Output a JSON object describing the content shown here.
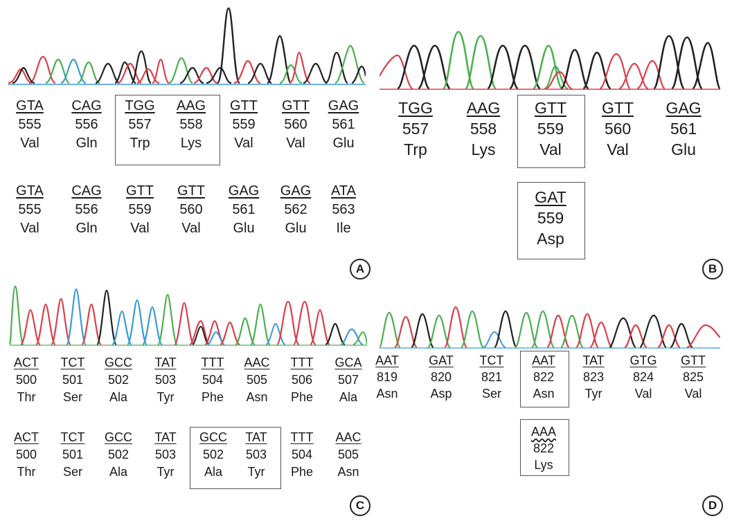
{
  "panels": [
    {
      "id": "A",
      "label": "A",
      "rows": [
        [
          {
            "codon": "GTA",
            "num": "555",
            "aa": "Val"
          },
          {
            "codon": "CAG",
            "num": "556",
            "aa": "Gln"
          },
          {
            "codon": "TGG",
            "num": "557",
            "aa": "Trp"
          },
          {
            "codon": "AAG",
            "num": "558",
            "aa": "Lys"
          },
          {
            "codon": "GTT",
            "num": "559",
            "aa": "Val"
          },
          {
            "codon": "GTT",
            "num": "560",
            "aa": "Val"
          },
          {
            "codon": "GAG",
            "num": "561",
            "aa": "Glu"
          }
        ],
        [
          {
            "codon": "GTA",
            "num": "555",
            "aa": "Val"
          },
          {
            "codon": "CAG",
            "num": "556",
            "aa": "Gln"
          },
          {
            "codon": "GTT",
            "num": "559",
            "aa": "Val"
          },
          {
            "codon": "GTT",
            "num": "560",
            "aa": "Val"
          },
          {
            "codon": "GAG",
            "num": "561",
            "aa": "Glu"
          },
          {
            "codon": "GAG",
            "num": "562",
            "aa": "Glu"
          },
          {
            "codon": "ATA",
            "num": "563",
            "aa": "Ile"
          }
        ]
      ]
    },
    {
      "id": "B",
      "label": "B",
      "rows": [
        [
          {
            "codon": "TGG",
            "num": "557",
            "aa": "Trp"
          },
          {
            "codon": "AAG",
            "num": "558",
            "aa": "Lys"
          },
          {
            "codon": "GTT",
            "num": "559",
            "aa": "Val"
          },
          {
            "codon": "GTT",
            "num": "560",
            "aa": "Val"
          },
          {
            "codon": "GAG",
            "num": "561",
            "aa": "Glu"
          }
        ],
        [
          {
            "codon": "GAT",
            "num": "559",
            "aa": "Asp"
          }
        ]
      ]
    },
    {
      "id": "C",
      "label": "C",
      "rows": [
        [
          {
            "codon": "ACT",
            "num": "500",
            "aa": "Thr"
          },
          {
            "codon": "TCT",
            "num": "501",
            "aa": "Ser"
          },
          {
            "codon": "GCC",
            "num": "502",
            "aa": "Ala"
          },
          {
            "codon": "TAT",
            "num": "503",
            "aa": "Tyr"
          },
          {
            "codon": "TTT",
            "num": "504",
            "aa": "Phe"
          },
          {
            "codon": "AAC",
            "num": "505",
            "aa": "Asn"
          },
          {
            "codon": "TTT",
            "num": "506",
            "aa": "Phe"
          },
          {
            "codon": "GCA",
            "num": "507",
            "aa": "Ala"
          }
        ],
        [
          {
            "codon": "ACT",
            "num": "500",
            "aa": "Thr"
          },
          {
            "codon": "TCT",
            "num": "501",
            "aa": "Ser"
          },
          {
            "codon": "GCC",
            "num": "502",
            "aa": "Ala"
          },
          {
            "codon": "TAT",
            "num": "503",
            "aa": "Tyr"
          },
          {
            "codon": "GCC",
            "num": "502",
            "aa": "Ala"
          },
          {
            "codon": "TAT",
            "num": "503",
            "aa": "Tyr"
          },
          {
            "codon": "TTT",
            "num": "504",
            "aa": "Phe"
          },
          {
            "codon": "AAC",
            "num": "505",
            "aa": "Asn"
          }
        ]
      ]
    },
    {
      "id": "D",
      "label": "D",
      "rows": [
        [
          {
            "codon": "AAT",
            "num": "819",
            "aa": "Asn"
          },
          {
            "codon": "GAT",
            "num": "820",
            "aa": "Asp"
          },
          {
            "codon": "TCT",
            "num": "821",
            "aa": "Ser"
          },
          {
            "codon": "AAT",
            "num": "822",
            "aa": "Asn"
          },
          {
            "codon": "TAT",
            "num": "823",
            "aa": "Tyr"
          },
          {
            "codon": "GTG",
            "num": "824",
            "aa": "Val"
          },
          {
            "codon": "GTT",
            "num": "825",
            "aa": "Val"
          }
        ],
        [
          {
            "codon": "AAA",
            "num": "822",
            "aa": "Lys"
          }
        ]
      ]
    }
  ],
  "trace_colors": {
    "A": "#4caf50",
    "C": "#3a9ad9",
    "G": "#222222",
    "T": "#d9404a"
  }
}
